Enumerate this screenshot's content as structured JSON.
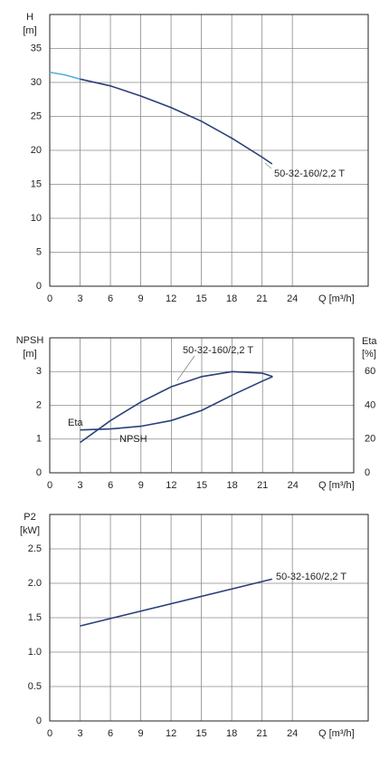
{
  "chart_data": [
    {
      "type": "line",
      "ylabel": "H",
      "yunit": "[m]",
      "xlabel": "Q [m³/h]",
      "xlim": [
        0,
        31.5
      ],
      "xticks": [
        0,
        3,
        6,
        9,
        12,
        15,
        18,
        21,
        24
      ],
      "ylim": [
        0,
        40
      ],
      "yticks": [
        0,
        5,
        10,
        15,
        20,
        25,
        30,
        35
      ],
      "grid": true,
      "annotations": [
        "50-32-160/2,2 T"
      ],
      "series": [
        {
          "color": "#5ab4e0",
          "x": [
            0,
            1.5,
            3
          ],
          "values": [
            31.5,
            31.1,
            30.5
          ]
        },
        {
          "color": "#2a3f7a",
          "x": [
            3,
            6,
            9,
            12,
            15,
            18,
            21,
            22
          ],
          "values": [
            30.5,
            29.5,
            28,
            26.3,
            24.3,
            21.8,
            19,
            18
          ]
        }
      ]
    },
    {
      "type": "line",
      "ylabel": "NPSH",
      "yunit": "[m]",
      "y2label": "Eta",
      "y2unit": "[%]",
      "xlabel": "Q [m³/h]",
      "xlim": [
        0,
        30
      ],
      "xticks": [
        0,
        3,
        6,
        9,
        12,
        15,
        18,
        21,
        24
      ],
      "ylim": [
        0,
        4
      ],
      "yticks": [
        0,
        1,
        2,
        3
      ],
      "y2lim": [
        0,
        80
      ],
      "y2ticks": [
        0,
        20,
        40,
        60
      ],
      "grid": true,
      "annotations": [
        "Eta",
        "NPSH",
        "50-32-160/2,2 T"
      ],
      "series": [
        {
          "color": "#2a3f7a",
          "axis": "y2",
          "x": [
            3,
            6,
            9,
            12,
            15,
            18,
            21,
            22
          ],
          "values": [
            18,
            31,
            42,
            51,
            57,
            60,
            59,
            57
          ]
        },
        {
          "color": "#2a3f7a",
          "x": [
            3,
            6,
            9,
            12,
            15,
            18,
            21,
            22
          ],
          "values": [
            1.27,
            1.3,
            1.38,
            1.55,
            1.85,
            2.3,
            2.72,
            2.85
          ]
        }
      ]
    },
    {
      "type": "line",
      "ylabel": "P2",
      "yunit": "[kW]",
      "xlabel": "Q [m³/h]",
      "xlim": [
        0,
        31.5
      ],
      "xticks": [
        0,
        3,
        6,
        9,
        12,
        15,
        18,
        21,
        24
      ],
      "ylim": [
        0,
        3
      ],
      "yticks": [
        0,
        {
          "value": 0.5,
          "label": "0.5"
        },
        {
          "value": 1,
          "label": "1.0"
        },
        {
          "value": 1.5,
          "label": "1.5"
        },
        {
          "value": 2,
          "label": "2.0"
        },
        {
          "value": 2.5,
          "label": "2.5"
        }
      ],
      "grid": true,
      "annotations": [
        "50-32-160/2,2 T"
      ],
      "series": [
        {
          "color": "#2a3f7a",
          "x": [
            3,
            22
          ],
          "values": [
            1.38,
            2.06
          ]
        }
      ]
    }
  ]
}
